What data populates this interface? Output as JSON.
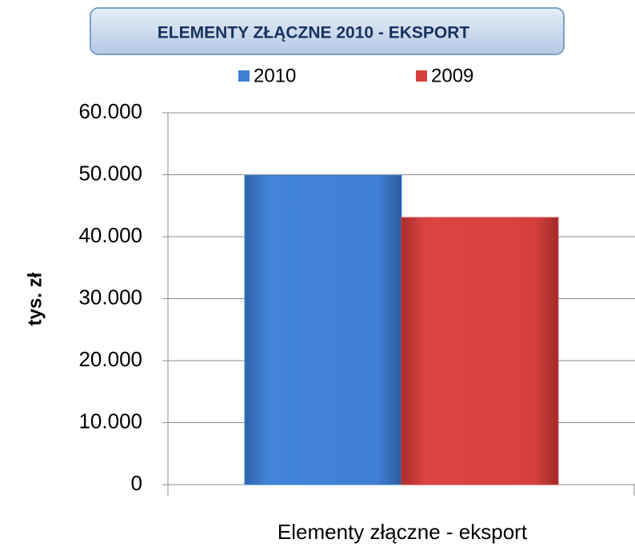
{
  "chart_data": {
    "type": "bar",
    "title": "ELEMENTY ZŁĄCZNE  2010  - EKSPORT",
    "ylabel": "tys. zł",
    "categories": [
      "Elementy złączne - eksport"
    ],
    "series": [
      {
        "name": "2010",
        "color": "#3f7fd4",
        "values": [
          49900
        ]
      },
      {
        "name": "2009",
        "color": "#d8403e",
        "values": [
          43100
        ]
      }
    ],
    "ylim": [
      0,
      60000
    ],
    "yticks": [
      0,
      {
        "value": 10000,
        "label": "10.000"
      },
      {
        "value": 20000,
        "label": "20.000"
      },
      {
        "value": 30000,
        "label": "30.000"
      },
      {
        "value": 40000,
        "label": "40.000"
      },
      {
        "value": 50000,
        "label": "50.000"
      },
      {
        "value": 60000,
        "label": "60.000"
      }
    ],
    "grid": true,
    "legend": "top"
  }
}
